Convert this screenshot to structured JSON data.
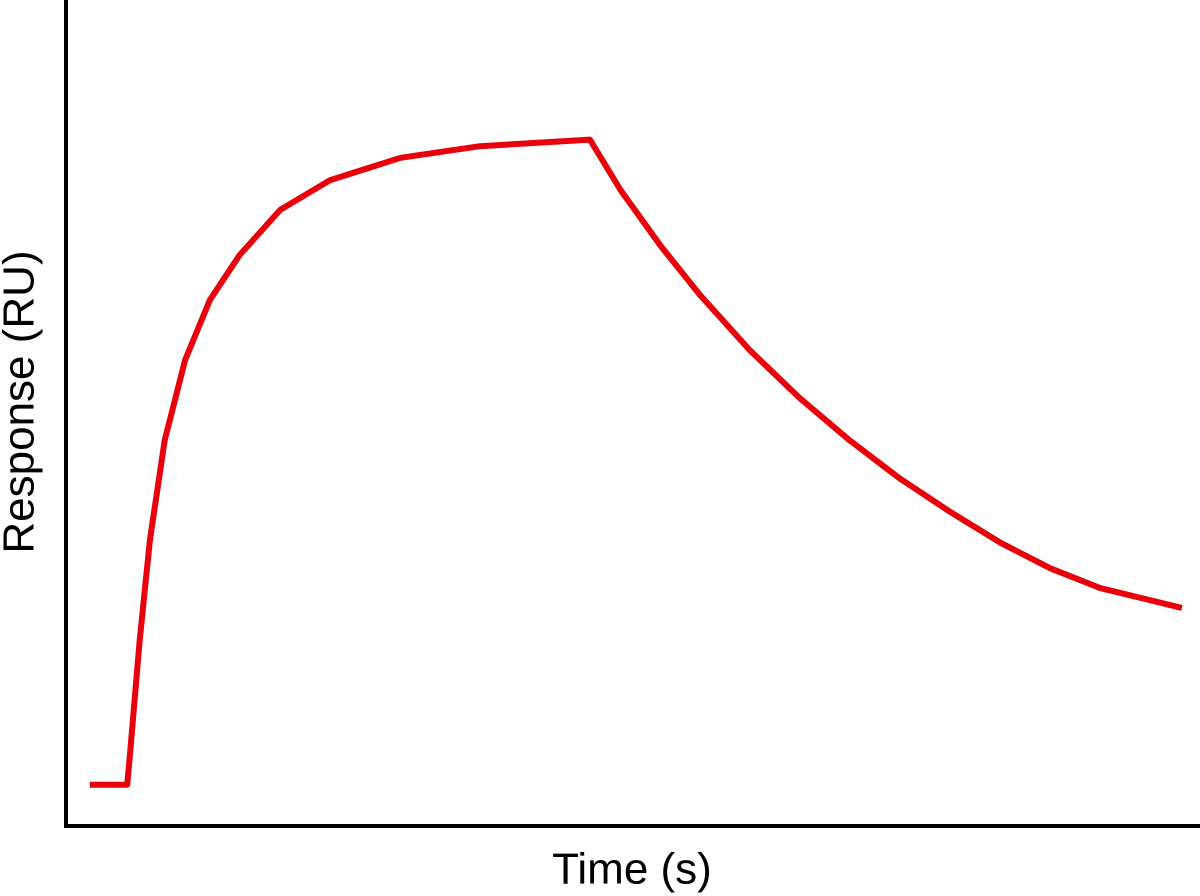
{
  "chart_data": {
    "type": "line",
    "x_label": "Time (s)",
    "y_label": "Response (RU)",
    "x": [
      2.1,
      5.4,
      5.6,
      6.5,
      7.4,
      8.7,
      10.5,
      12.7,
      15.3,
      18.9,
      23.3,
      29.5,
      36.5,
      46.2,
      48.9,
      52.4,
      55.9,
      60.3,
      64.7,
      69.1,
      73.5,
      78.0,
      82.4,
      86.8,
      91.2,
      98.4
    ],
    "series": [
      {
        "color": "#e8000b",
        "values": [
          5.0,
          5.0,
          8.0,
          22.5,
          34.6,
          46.7,
          56.4,
          63.7,
          69.1,
          74.6,
          78.2,
          80.9,
          82.3,
          83.1,
          77.0,
          70.3,
          64.3,
          57.6,
          51.8,
          46.7,
          42.1,
          38.0,
          34.3,
          31.2,
          28.8,
          26.4
        ]
      }
    ],
    "xlim": [
      0,
      100
    ],
    "ylim": [
      0,
      100
    ]
  }
}
